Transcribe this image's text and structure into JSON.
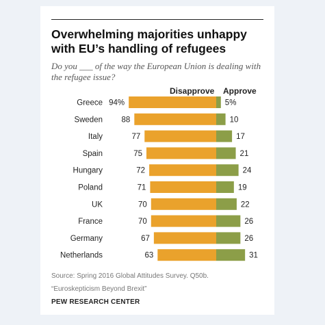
{
  "header": {
    "title": "Overwhelming majorities unhappy with EU’s handling of refugees",
    "subtitle": "Do you ___ of the way the European Union is dealing with the refugee issue?"
  },
  "legend": {
    "disapprove": "Disapprove",
    "approve": "Approve"
  },
  "footer": {
    "source": "Source: Spring 2016 Global Attitudes Survey. Q50b.",
    "note": "“Euroskepticism Beyond Brexit”",
    "brand": "PEW RESEARCH CENTER"
  },
  "colors": {
    "disapprove": "#eaa22c",
    "approve": "#8c9e48",
    "background": "#eef2f7"
  },
  "chart_data": {
    "type": "bar",
    "categories": [
      "Greece",
      "Sweden",
      "Italy",
      "Spain",
      "Hungary",
      "Poland",
      "UK",
      "France",
      "Germany",
      "Netherlands"
    ],
    "series": [
      {
        "name": "Disapprove",
        "values": [
          94,
          88,
          77,
          75,
          72,
          71,
          70,
          70,
          67,
          63
        ],
        "labels": [
          "94%",
          "88",
          "77",
          "75",
          "72",
          "71",
          "70",
          "70",
          "67",
          "63"
        ]
      },
      {
        "name": "Approve",
        "values": [
          5,
          10,
          17,
          21,
          24,
          19,
          22,
          26,
          26,
          31
        ],
        "labels": [
          "5%",
          "10",
          "17",
          "21",
          "24",
          "19",
          "22",
          "26",
          "26",
          "31"
        ]
      }
    ],
    "title": "Overwhelming majorities unhappy with EU’s handling of refugees",
    "xlabel": "",
    "ylabel": "",
    "layout": "diverging horizontal bars"
  }
}
